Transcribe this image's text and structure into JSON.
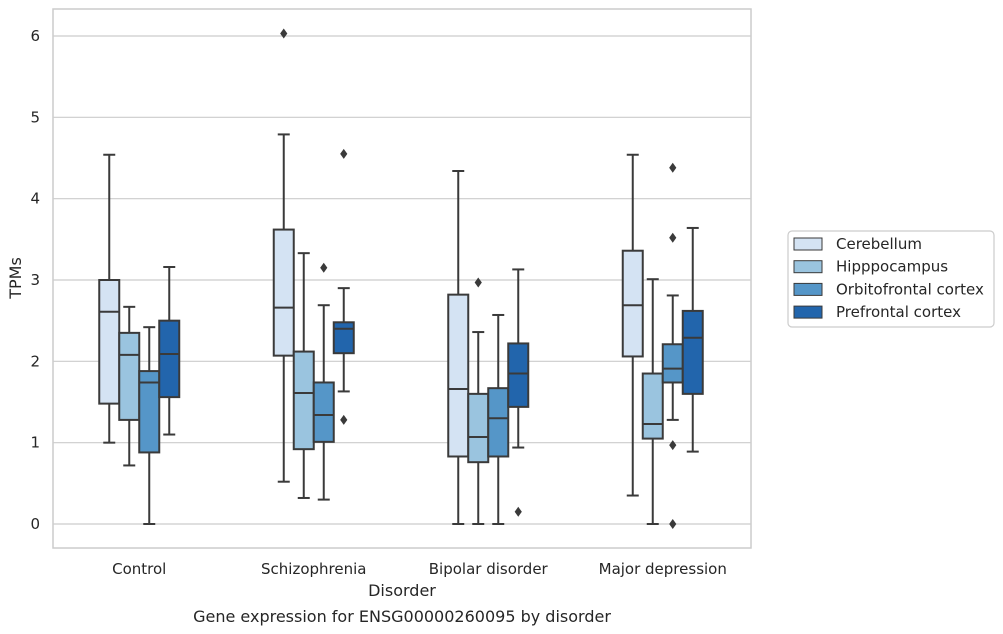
{
  "chart_data": {
    "type": "boxplot",
    "title": "",
    "caption": "Gene expression for ENSG00000260095 by disorder",
    "xlabel": "Disorder",
    "ylabel": "TPMs",
    "ylim": [
      -0.3,
      6.35
    ],
    "yticks": [
      0,
      1,
      2,
      3,
      4,
      5,
      6
    ],
    "grid": "horizontal",
    "legend_position": "right",
    "categories": [
      "Control",
      "Schizophrenia",
      "Bipolar disorder",
      "Major depression"
    ],
    "series": [
      {
        "name": "Cerebellum",
        "color": "#d4e3f3",
        "boxes": [
          {
            "whislo": 1.0,
            "q1": 1.48,
            "med": 2.61,
            "q3": 3.0,
            "whishi": 4.54,
            "fliers": []
          },
          {
            "whislo": 0.52,
            "q1": 2.07,
            "med": 2.66,
            "q3": 3.62,
            "whishi": 4.79,
            "fliers": [
              6.03
            ]
          },
          {
            "whislo": 0.0,
            "q1": 0.83,
            "med": 1.66,
            "q3": 2.82,
            "whishi": 4.34,
            "fliers": []
          },
          {
            "whislo": 0.35,
            "q1": 2.06,
            "med": 2.69,
            "q3": 3.36,
            "whishi": 4.54,
            "fliers": []
          }
        ]
      },
      {
        "name": "Hipppocampus",
        "color": "#9ac4df",
        "boxes": [
          {
            "whislo": 0.72,
            "q1": 1.28,
            "med": 2.08,
            "q3": 2.35,
            "whishi": 2.67,
            "fliers": []
          },
          {
            "whislo": 0.32,
            "q1": 0.92,
            "med": 1.61,
            "q3": 2.12,
            "whishi": 3.33,
            "fliers": []
          },
          {
            "whislo": 0.0,
            "q1": 0.76,
            "med": 1.07,
            "q3": 1.6,
            "whishi": 2.36,
            "fliers": [
              2.97
            ]
          },
          {
            "whislo": 0.0,
            "q1": 1.05,
            "med": 1.23,
            "q3": 1.85,
            "whishi": 3.01,
            "fliers": []
          }
        ]
      },
      {
        "name": "Orbitofrontal cortex",
        "color": "#5596c8",
        "boxes": [
          {
            "whislo": 0.0,
            "q1": 0.88,
            "med": 1.74,
            "q3": 1.88,
            "whishi": 2.42,
            "fliers": []
          },
          {
            "whislo": 0.3,
            "q1": 1.01,
            "med": 1.34,
            "q3": 1.74,
            "whishi": 2.69,
            "fliers": [
              3.15
            ]
          },
          {
            "whislo": 0.0,
            "q1": 0.83,
            "med": 1.3,
            "q3": 1.67,
            "whishi": 2.57,
            "fliers": []
          },
          {
            "whislo": 1.28,
            "q1": 1.74,
            "med": 1.91,
            "q3": 2.21,
            "whishi": 2.81,
            "fliers": [
              3.52,
              4.38,
              0.97,
              0.0
            ]
          }
        ]
      },
      {
        "name": "Prefrontal cortex",
        "color": "#2265ac",
        "boxes": [
          {
            "whislo": 1.1,
            "q1": 1.56,
            "med": 2.09,
            "q3": 2.5,
            "whishi": 3.16,
            "fliers": []
          },
          {
            "whislo": 1.63,
            "q1": 2.1,
            "med": 2.4,
            "q3": 2.48,
            "whishi": 2.9,
            "fliers": [
              4.55,
              1.28
            ]
          },
          {
            "whislo": 0.94,
            "q1": 1.44,
            "med": 1.85,
            "q3": 2.22,
            "whishi": 3.13,
            "fliers": [
              0.15
            ]
          },
          {
            "whislo": 0.89,
            "q1": 1.6,
            "med": 2.29,
            "q3": 2.62,
            "whishi": 3.64,
            "fliers": []
          }
        ]
      }
    ],
    "styles": {
      "frame_color": "#cccccc",
      "grid_color": "#cccccc",
      "line_color": "#3a3a3a"
    }
  }
}
